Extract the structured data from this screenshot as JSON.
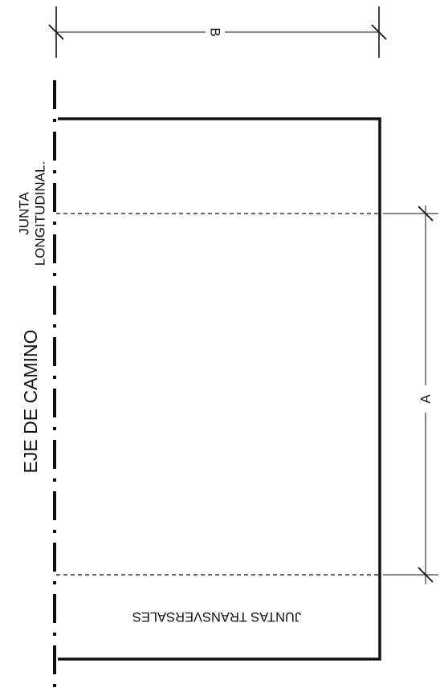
{
  "labels": {
    "dimension_b": "B",
    "dimension_a": "A",
    "axis": "EJE DE CAMINO",
    "long_joint_line1": "JUNTA",
    "long_joint_line2": "LONGITUDINAL.",
    "transverse_joints": "JUNTAS TRANSVERSALES"
  },
  "colors": {
    "ink": "#111111",
    "paper": "#ffffff"
  }
}
